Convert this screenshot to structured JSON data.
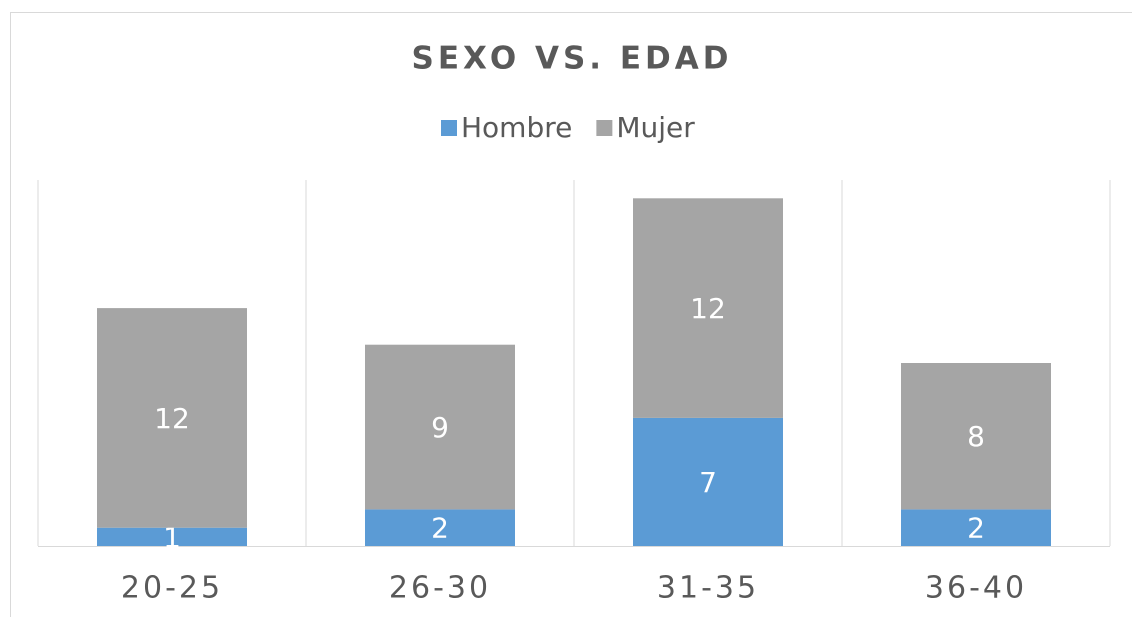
{
  "chart_data": {
    "type": "stacked_bar",
    "title": "SEXO VS. EDAD",
    "categories": [
      "20-25",
      "26-30",
      "31-35",
      "36-40"
    ],
    "series": [
      {
        "name": "Hombre",
        "color": "#5b9bd5",
        "values": [
          1,
          2,
          7,
          2
        ]
      },
      {
        "name": "Mujer",
        "color": "#a5a5a5",
        "values": [
          12,
          9,
          12,
          8
        ]
      }
    ],
    "ylim": [
      0,
      20
    ],
    "legend": "top"
  }
}
